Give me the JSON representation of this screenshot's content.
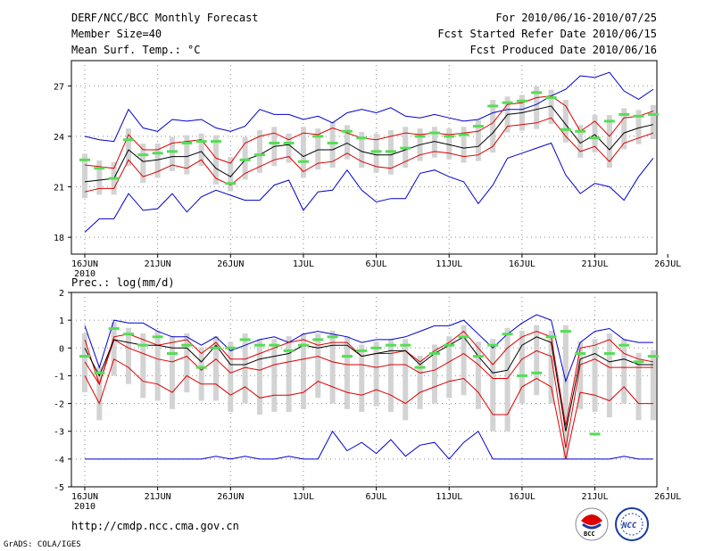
{
  "header": {
    "title": "DERF/NCC/BCC Monthly Forecast",
    "member_size": "Member Size=40",
    "variable": "Mean Surf. Temp.: °C",
    "period": "For 2010/06/16-2010/07/25",
    "refer_date": "Fcst Started Refer Date 2010/06/15",
    "produced_date": "Fcst Produced Date 2010/06/16"
  },
  "footer": {
    "url": "http://cmdp.ncc.cma.gov.cn",
    "grads": "GrADS: COLA/IGES",
    "logo_bcc": "BCC",
    "logo_ncc": "NCC"
  },
  "colors": {
    "max_min": "#0000cc",
    "spread": "#dd0000",
    "mean": "#000000",
    "box": "#d3d3d3",
    "marker": "#55dd55"
  },
  "chart_data": [
    {
      "type": "line",
      "title": "Mean Surf. Temp.: °C",
      "x_tick_labels": [
        "16JUN",
        "21JUN",
        "26JUN",
        "1JUL",
        "6JUL",
        "11JUL",
        "16JUL",
        "21JUL",
        "26JUL"
      ],
      "x_year_label": "2010",
      "ylim": [
        17,
        28.5
      ],
      "y_ticks": [
        18,
        21,
        24,
        27
      ],
      "days": 40,
      "series": [
        {
          "name": "max",
          "values": [
            24.0,
            23.8,
            23.7,
            25.6,
            24.5,
            24.3,
            25.0,
            24.9,
            25.0,
            24.5,
            24.3,
            24.6,
            25.6,
            25.3,
            25.3,
            25.0,
            25.2,
            24.8,
            25.4,
            25.6,
            25.4,
            25.7,
            25.2,
            25.1,
            25.3,
            25.1,
            24.9,
            25.0,
            25.4,
            25.6,
            25.6,
            25.9,
            26.4,
            26.8,
            27.6,
            27.5,
            27.8,
            26.7,
            26.2,
            26.8
          ]
        },
        {
          "name": "upper",
          "values": [
            22.3,
            22.2,
            22.1,
            24.1,
            23.2,
            23.2,
            23.6,
            23.7,
            23.8,
            22.7,
            22.4,
            23.6,
            24.0,
            24.2,
            23.8,
            24.2,
            24.1,
            24.5,
            24.2,
            23.9,
            23.8,
            24.0,
            24.2,
            24.1,
            24.2,
            24.1,
            24.2,
            24.3,
            24.8,
            25.9,
            26.0,
            26.3,
            26.4,
            25.8,
            24.3,
            24.9,
            24.0,
            25.1,
            25.2,
            25.5
          ]
        },
        {
          "name": "mean",
          "values": [
            21.3,
            21.4,
            21.5,
            23.2,
            22.5,
            22.6,
            22.8,
            22.8,
            23.1,
            22.1,
            21.6,
            22.6,
            22.9,
            23.4,
            23.5,
            22.8,
            23.2,
            23.2,
            23.6,
            23.1,
            22.9,
            22.9,
            23.2,
            23.5,
            23.7,
            23.5,
            23.3,
            23.4,
            24.2,
            25.3,
            25.4,
            25.6,
            25.8,
            24.7,
            23.6,
            24.1,
            23.2,
            24.2,
            24.5,
            24.7
          ]
        },
        {
          "name": "lower",
          "values": [
            20.7,
            20.9,
            20.9,
            22.6,
            21.6,
            21.9,
            22.3,
            22.1,
            22.6,
            21.5,
            21.1,
            21.8,
            22.2,
            22.6,
            22.8,
            21.9,
            22.4,
            22.5,
            23.0,
            22.5,
            22.2,
            22.1,
            22.5,
            22.9,
            23.1,
            23.0,
            22.8,
            22.9,
            23.4,
            24.6,
            24.7,
            24.8,
            25.1,
            24.0,
            23.1,
            23.4,
            22.5,
            23.6,
            23.9,
            24.2
          ]
        },
        {
          "name": "min",
          "values": [
            18.3,
            19.1,
            19.1,
            20.6,
            19.6,
            19.7,
            20.6,
            19.5,
            20.4,
            20.8,
            20.5,
            20.2,
            20.2,
            21.1,
            21.4,
            19.6,
            20.7,
            20.8,
            22.0,
            20.8,
            20.1,
            20.3,
            20.3,
            21.8,
            22.0,
            21.6,
            21.3,
            20.0,
            21.1,
            22.7,
            23.0,
            23.3,
            23.6,
            21.7,
            20.6,
            21.2,
            21.0,
            20.2,
            21.6,
            22.7
          ]
        },
        {
          "name": "ensemble",
          "values": [
            22.6,
            22.1,
            21.5,
            23.8,
            22.9,
            23.0,
            23.1,
            23.6,
            23.7,
            23.7,
            21.2,
            22.6,
            22.9,
            23.6,
            23.6,
            22.5,
            24.0,
            23.6,
            24.3,
            23.9,
            23.1,
            23.1,
            23.3,
            24.0,
            24.2,
            24.0,
            24.1,
            24.6,
            25.8,
            26.0,
            26.1,
            26.6,
            26.3,
            24.4,
            24.3,
            23.9,
            24.9,
            25.3,
            25.2,
            25.3
          ]
        }
      ]
    },
    {
      "type": "line",
      "title": "Prec.: log(mm/d)",
      "x_tick_labels": [
        "16JUN",
        "21JUN",
        "26JUN",
        "1JUL",
        "6JUL",
        "11JUL",
        "16JUL",
        "21JUL",
        "26JUL"
      ],
      "x_year_label": "2010",
      "ylim": [
        -5,
        2
      ],
      "y_ticks": [
        -5,
        -4,
        -3,
        -2,
        -1,
        0,
        1,
        2
      ],
      "days": 40,
      "series": [
        {
          "name": "max",
          "values": [
            0.8,
            -0.7,
            1.0,
            0.9,
            0.9,
            0.6,
            0.4,
            0.4,
            0.1,
            0.4,
            -0.1,
            0.1,
            0.3,
            0.4,
            0.2,
            0.5,
            0.6,
            0.5,
            0.4,
            0.2,
            0.3,
            0.3,
            0.4,
            0.6,
            0.8,
            0.8,
            1.0,
            0.5,
            0.0,
            0.5,
            0.9,
            1.2,
            1.0,
            -1.2,
            0.2,
            0.6,
            0.7,
            0.3,
            0.2,
            0.2
          ]
        },
        {
          "name": "upper",
          "values": [
            0.3,
            -1.3,
            0.4,
            0.5,
            0.3,
            0.1,
            0.2,
            0.3,
            -0.2,
            0.2,
            -0.4,
            -0.4,
            -0.2,
            0.0,
            0.2,
            0.3,
            0.1,
            0.2,
            0.2,
            -0.3,
            -0.2,
            -0.2,
            -0.1,
            -0.5,
            -0.1,
            0.2,
            0.6,
            0.0,
            -0.6,
            0.0,
            0.4,
            0.6,
            0.4,
            -2.8,
            0.0,
            0.1,
            0.3,
            -0.2,
            -0.4,
            -0.5
          ]
        },
        {
          "name": "mean",
          "values": [
            0.0,
            -1.0,
            0.3,
            0.2,
            0.1,
            0.1,
            0.0,
            0.0,
            -0.5,
            0.1,
            -0.6,
            -0.6,
            -0.4,
            -0.3,
            -0.2,
            0.1,
            0.0,
            0.1,
            0.1,
            -0.3,
            -0.2,
            -0.1,
            -0.1,
            -0.6,
            -0.2,
            0.1,
            0.4,
            -0.3,
            -0.9,
            -0.8,
            0.1,
            0.4,
            0.2,
            -3.0,
            -0.4,
            -0.2,
            -0.5,
            -0.4,
            -0.6,
            -0.6
          ]
        },
        {
          "name": "lower",
          "values": [
            -0.5,
            -1.3,
            0.3,
            0.0,
            -0.2,
            -0.4,
            -0.5,
            -0.3,
            -0.8,
            -0.4,
            -0.9,
            -0.7,
            -0.8,
            -0.6,
            -0.5,
            -0.4,
            -0.3,
            -0.5,
            -0.6,
            -0.6,
            -0.7,
            -0.6,
            -0.6,
            -0.9,
            -0.8,
            -0.5,
            -0.2,
            -0.6,
            -1.1,
            -1.1,
            -0.4,
            -0.1,
            -0.3,
            -3.6,
            -0.6,
            -0.4,
            -0.7,
            -0.7,
            -0.7,
            -0.7
          ]
        },
        {
          "name": "min",
          "values": [
            -1.0,
            -2.0,
            -0.4,
            -0.7,
            -1.2,
            -1.3,
            -1.6,
            -1.0,
            -1.3,
            -1.3,
            -1.7,
            -1.4,
            -1.8,
            -1.7,
            -1.7,
            -1.6,
            -1.2,
            -1.4,
            -1.6,
            -1.7,
            -1.5,
            -1.7,
            -2.0,
            -1.6,
            -1.4,
            -1.2,
            -1.1,
            -1.6,
            -2.4,
            -2.4,
            -1.4,
            -1.1,
            -1.4,
            -4.0,
            -1.6,
            -1.7,
            -1.9,
            -1.4,
            -2.0,
            -2.0
          ]
        },
        {
          "name": "lowest",
          "values": [
            -4.0,
            -4.0,
            -4.0,
            -4.0,
            -4.0,
            -4.0,
            -4.0,
            -4.0,
            -4.0,
            -3.9,
            -4.0,
            -3.9,
            -4.0,
            -4.0,
            -3.9,
            -4.0,
            -4.0,
            -3.0,
            -3.7,
            -3.4,
            -3.8,
            -3.3,
            -3.9,
            -3.5,
            -3.4,
            -4.0,
            -3.4,
            -3.0,
            -4.0,
            -4.0,
            -4.0,
            -4.0,
            -4.0,
            -4.0,
            -4.0,
            -4.0,
            -4.0,
            -3.9,
            -4.0,
            -4.0
          ]
        },
        {
          "name": "ensemble",
          "values": [
            -0.3,
            -0.9,
            0.7,
            0.5,
            0.1,
            0.4,
            -0.2,
            0.1,
            -0.7,
            0.0,
            0.0,
            0.3,
            0.1,
            0.1,
            -0.1,
            0.1,
            0.3,
            0.4,
            -0.3,
            -0.1,
            0.0,
            0.1,
            0.1,
            -0.7,
            -0.2,
            0.1,
            0.4,
            -0.3,
            0.1,
            0.5,
            -1.0,
            -0.9,
            0.4,
            0.6,
            -0.2,
            -3.1,
            -0.2,
            0.1,
            -0.5,
            -0.3
          ]
        }
      ]
    }
  ]
}
